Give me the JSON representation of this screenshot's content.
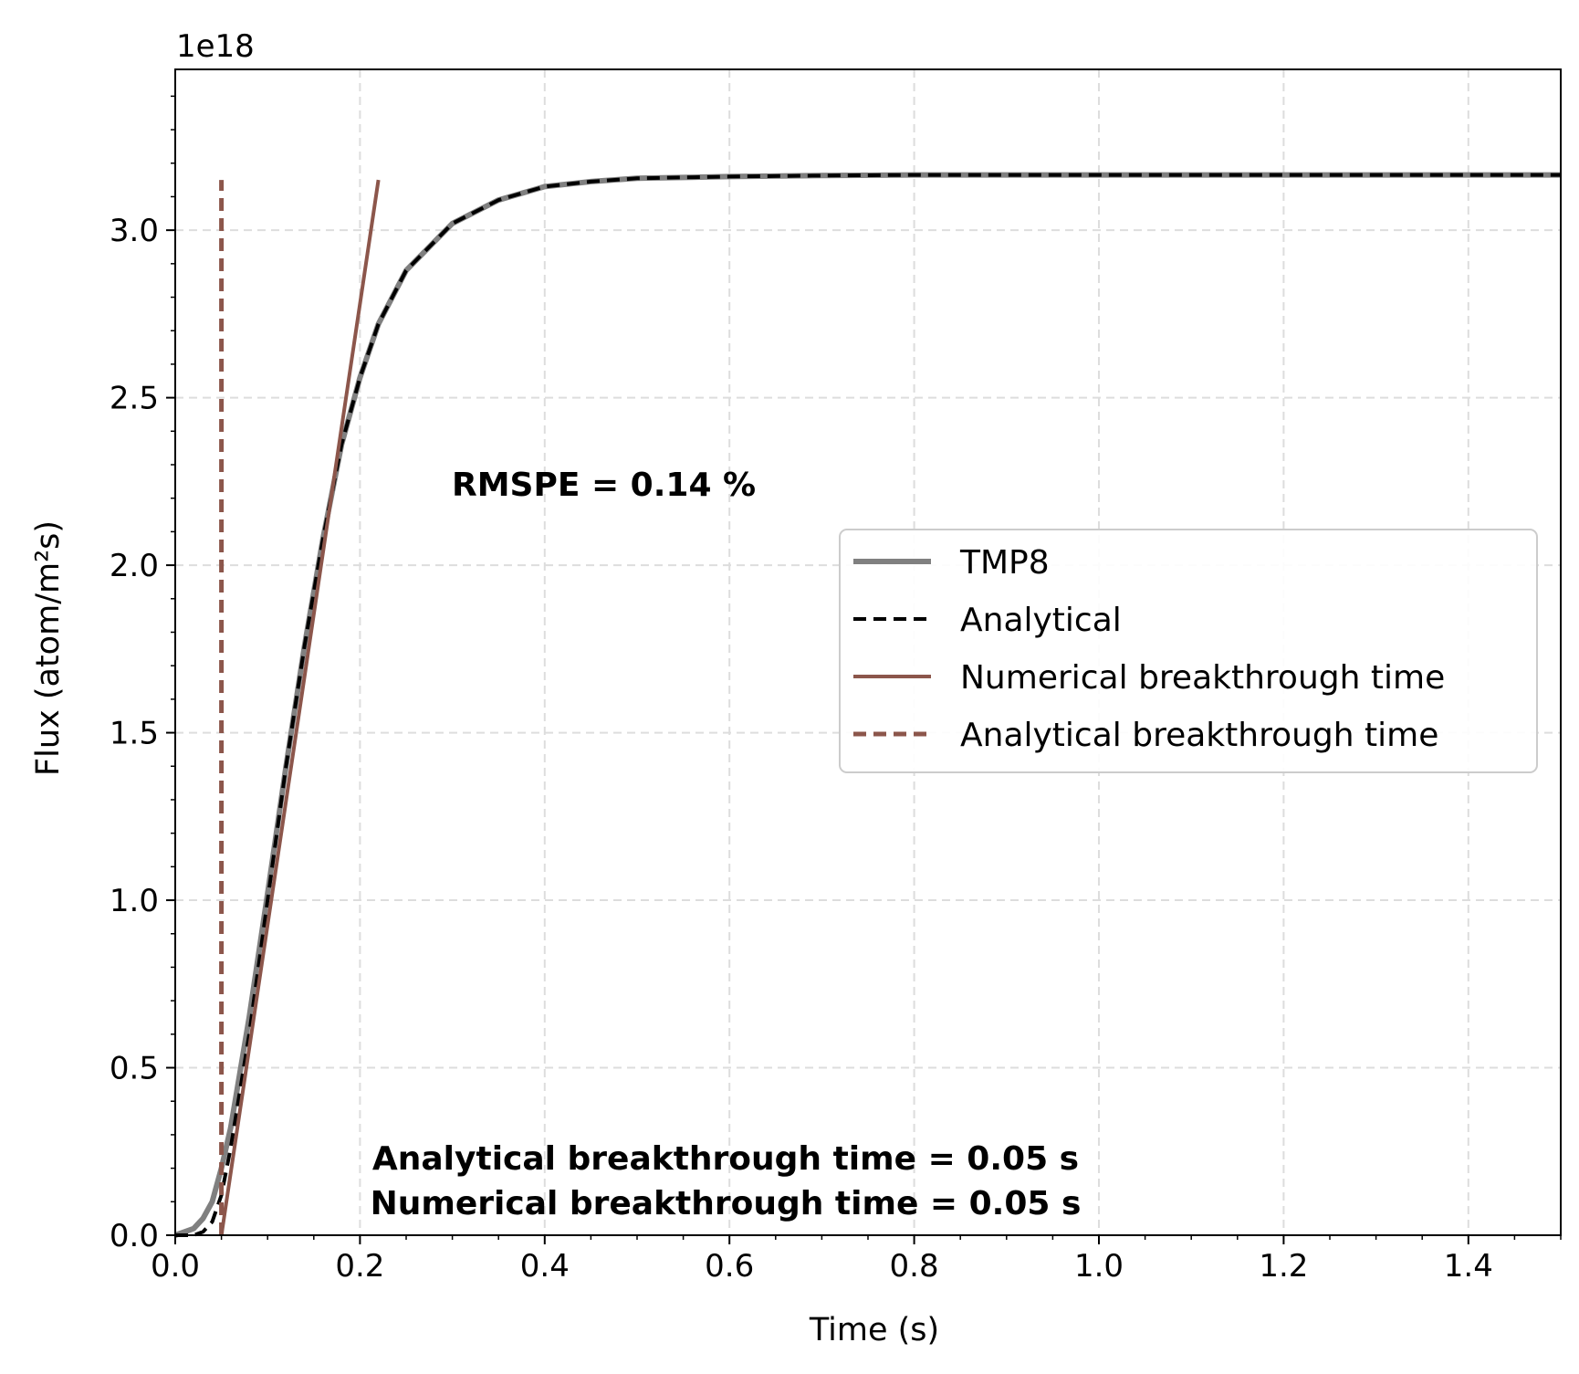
{
  "chart_data": {
    "type": "line",
    "xlabel": "Time (s)",
    "ylabel": "Flux (atom/m²s)",
    "offset_label": "1e18",
    "xlim": [
      0,
      1.5
    ],
    "ylim": [
      0,
      3.48
    ],
    "y_scale": 1e+18,
    "x_ticks": [
      "0.0",
      "0.2",
      "0.4",
      "0.6",
      "0.8",
      "1.0",
      "1.2",
      "1.4"
    ],
    "x_tick_values": [
      0,
      0.2,
      0.4,
      0.6,
      0.8,
      1.0,
      1.2,
      1.4
    ],
    "y_ticks": [
      "0.0",
      "0.5",
      "1.0",
      "1.5",
      "2.0",
      "2.5",
      "3.0"
    ],
    "y_tick_values": [
      0,
      0.5,
      1.0,
      1.5,
      2.0,
      2.5,
      3.0
    ],
    "grid": true,
    "legend_position": "center-right",
    "series": [
      {
        "name": "TMP8",
        "style": "solid",
        "color": "#808080",
        "x": [
          0,
          0.02,
          0.03,
          0.04,
          0.05,
          0.06,
          0.08,
          0.1,
          0.12,
          0.14,
          0.16,
          0.18,
          0.2,
          0.22,
          0.25,
          0.3,
          0.35,
          0.4,
          0.45,
          0.5,
          0.6,
          0.7,
          0.8,
          1.0,
          1.2,
          1.5
        ],
        "y": [
          0,
          0.02,
          0.05,
          0.1,
          0.2,
          0.32,
          0.65,
          1.02,
          1.4,
          1.76,
          2.08,
          2.36,
          2.56,
          2.72,
          2.88,
          3.02,
          3.09,
          3.13,
          3.145,
          3.155,
          3.16,
          3.163,
          3.165,
          3.165,
          3.165,
          3.165
        ]
      },
      {
        "name": "Analytical",
        "style": "dashed",
        "color": "#000000",
        "x": [
          0,
          0.02,
          0.03,
          0.04,
          0.05,
          0.06,
          0.08,
          0.1,
          0.12,
          0.14,
          0.16,
          0.18,
          0.2,
          0.22,
          0.25,
          0.3,
          0.35,
          0.4,
          0.45,
          0.5,
          0.6,
          0.7,
          0.8,
          1.0,
          1.2,
          1.5
        ],
        "y": [
          0,
          0.0,
          0.01,
          0.04,
          0.12,
          0.26,
          0.6,
          1.0,
          1.4,
          1.76,
          2.08,
          2.36,
          2.56,
          2.72,
          2.88,
          3.02,
          3.09,
          3.13,
          3.145,
          3.155,
          3.16,
          3.163,
          3.165,
          3.165,
          3.165,
          3.165
        ]
      },
      {
        "name": "Numerical breakthrough time",
        "style": "solid",
        "color": "#8c564b",
        "x": [
          0.05,
          0.22
        ],
        "y": [
          0,
          3.15
        ]
      },
      {
        "name": "Analytical breakthrough time",
        "style": "dashed",
        "color": "#8c564b",
        "x": [
          0.05,
          0.05
        ],
        "y": [
          0,
          3.15
        ]
      }
    ],
    "annotations": {
      "rmspe": "RMSPE = 0.14 %",
      "analytical_bt": "Analytical breakthrough time = 0.05 s",
      "numerical_bt": "Numerical breakthrough time = 0.05 s"
    }
  }
}
